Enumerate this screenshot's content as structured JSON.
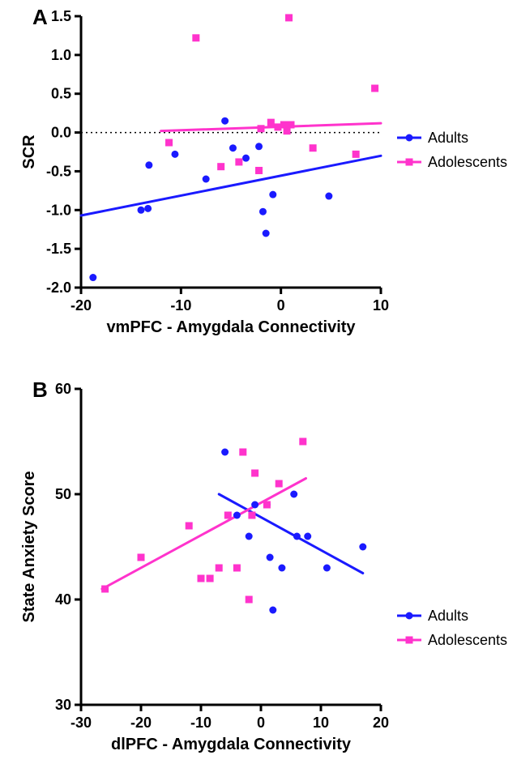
{
  "colors": {
    "adults": "#1a1aff",
    "adolescents": "#ff33cc",
    "axis": "#000000",
    "zero_line": "#000000",
    "background": "#ffffff"
  },
  "markers": {
    "adults_shape": "circle",
    "adolescents_shape": "square",
    "size": 9
  },
  "line_width": 3,
  "axis_width": 3,
  "panelA": {
    "letter": "A",
    "type": "scatter",
    "xlabel": "vmPFC - Amygdala Connectivity",
    "ylabel": "SCR",
    "xlim": [
      -20,
      10
    ],
    "ylim": [
      -2.0,
      1.5
    ],
    "xticks": [
      -20,
      -10,
      0,
      10
    ],
    "yticks": [
      -2.0,
      -1.5,
      -1.0,
      -0.5,
      0.0,
      0.5,
      1.0,
      1.5
    ],
    "zero_line_y": 0,
    "legend": {
      "items": [
        {
          "label": "Adults",
          "color": "#1a1aff",
          "shape": "circle"
        },
        {
          "label": "Adolescents",
          "color": "#ff33cc",
          "shape": "square"
        }
      ]
    },
    "series": {
      "adults": {
        "color": "#1a1aff",
        "shape": "circle",
        "points": [
          [
            -18.8,
            -1.87
          ],
          [
            -14.0,
            -1.0
          ],
          [
            -13.3,
            -0.98
          ],
          [
            -13.2,
            -0.42
          ],
          [
            -10.6,
            -0.28
          ],
          [
            -7.5,
            -0.6
          ],
          [
            -5.6,
            0.15
          ],
          [
            -4.8,
            -0.2
          ],
          [
            -3.5,
            -0.33
          ],
          [
            -2.2,
            -0.18
          ],
          [
            -1.8,
            -1.02
          ],
          [
            -1.5,
            -1.3
          ],
          [
            -0.8,
            -0.8
          ],
          [
            4.8,
            -0.82
          ]
        ],
        "fit": {
          "x1": -20,
          "y1": -1.07,
          "x2": 10,
          "y2": -0.3
        }
      },
      "adolescents": {
        "color": "#ff33cc",
        "shape": "square",
        "points": [
          [
            -11.2,
            -0.13
          ],
          [
            -8.5,
            1.22
          ],
          [
            -6.0,
            -0.44
          ],
          [
            -4.2,
            -0.38
          ],
          [
            -2.0,
            0.05
          ],
          [
            -2.2,
            -0.49
          ],
          [
            -1.0,
            0.13
          ],
          [
            -0.3,
            0.07
          ],
          [
            0.3,
            0.1
          ],
          [
            0.6,
            0.02
          ],
          [
            0.8,
            1.48
          ],
          [
            1.0,
            0.1
          ],
          [
            3.2,
            -0.2
          ],
          [
            7.5,
            -0.28
          ],
          [
            9.4,
            0.57
          ]
        ],
        "fit": {
          "x1": -12,
          "y1": 0.02,
          "x2": 10,
          "y2": 0.12
        }
      }
    }
  },
  "panelB": {
    "letter": "B",
    "type": "scatter",
    "xlabel": "dlPFC - Amygdala Connectivity",
    "ylabel": "State Anxiety Score",
    "xlim": [
      -30,
      20
    ],
    "ylim": [
      30,
      60
    ],
    "xticks": [
      -30,
      -20,
      -10,
      0,
      10,
      20
    ],
    "yticks": [
      30,
      40,
      50,
      60
    ],
    "legend": {
      "items": [
        {
          "label": "Adults",
          "color": "#1a1aff",
          "shape": "circle"
        },
        {
          "label": "Adolescents",
          "color": "#ff33cc",
          "shape": "square"
        }
      ]
    },
    "series": {
      "adults": {
        "color": "#1a1aff",
        "shape": "circle",
        "points": [
          [
            -6.0,
            54
          ],
          [
            -4.0,
            48
          ],
          [
            -2.0,
            46
          ],
          [
            -1.0,
            49
          ],
          [
            1.0,
            49
          ],
          [
            1.5,
            44
          ],
          [
            2.0,
            39
          ],
          [
            3.5,
            43
          ],
          [
            5.5,
            50
          ],
          [
            6.0,
            46
          ],
          [
            7.8,
            46
          ],
          [
            11.0,
            43
          ],
          [
            17.0,
            45
          ]
        ],
        "fit": {
          "x1": -7,
          "y1": 50.0,
          "x2": 17,
          "y2": 42.5
        }
      },
      "adolescents": {
        "color": "#ff33cc",
        "shape": "square",
        "points": [
          [
            -26.0,
            41
          ],
          [
            -20.0,
            44
          ],
          [
            -12.0,
            47
          ],
          [
            -10.0,
            42
          ],
          [
            -8.5,
            42
          ],
          [
            -7.0,
            43
          ],
          [
            -5.5,
            48
          ],
          [
            -4.0,
            43
          ],
          [
            -3.0,
            54
          ],
          [
            -2.0,
            40
          ],
          [
            -1.5,
            48
          ],
          [
            -1.0,
            52
          ],
          [
            1.0,
            49
          ],
          [
            3.0,
            51
          ],
          [
            7.0,
            55
          ]
        ],
        "fit": {
          "x1": -26.5,
          "y1": 41.0,
          "x2": 7.5,
          "y2": 51.5
        }
      }
    }
  }
}
